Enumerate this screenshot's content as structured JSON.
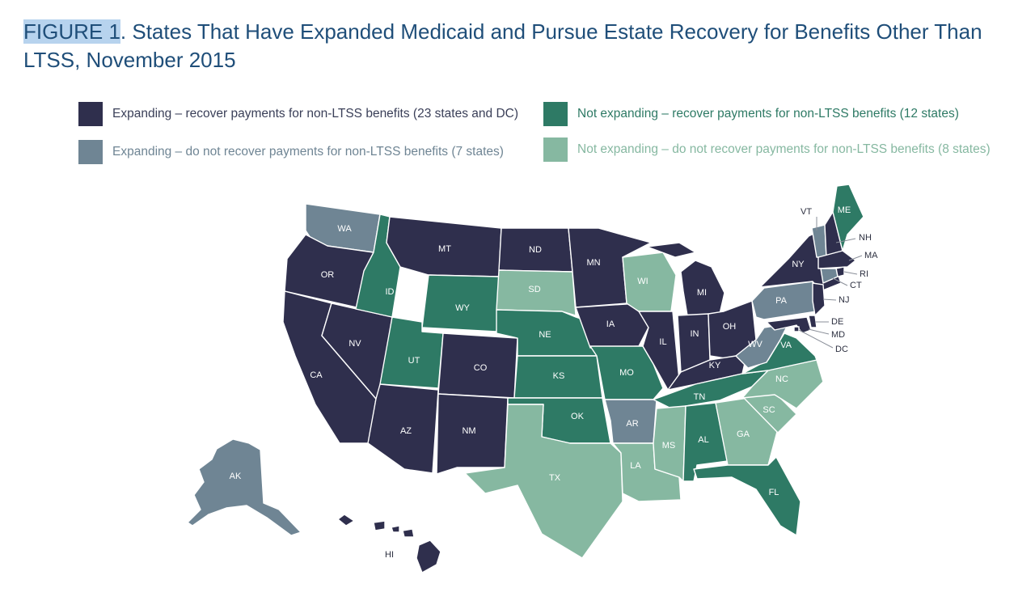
{
  "title": {
    "figure_label": "FIGURE 1",
    "text": ". States That Have Expanded Medicaid and Pursue Estate Recovery for Benefits Other Than LTSS, November 2015"
  },
  "colors": {
    "expanding_recover": "#2f2f4d",
    "expanding_no_recover": "#6f8594",
    "not_expanding_recover": "#2e7a65",
    "not_expanding_no_recover": "#86b8a1"
  },
  "legend": [
    {
      "key": "expanding_recover",
      "label": "Expanding – recover payments for non-LTSS benefits (23 states and DC)"
    },
    {
      "key": "not_expanding_recover",
      "label": "Not expanding – recover payments for non-LTSS benefits (12 states)"
    },
    {
      "key": "expanding_no_recover",
      "label": "Expanding – do not recover payments for non-LTSS benefits (7 states)"
    },
    {
      "key": "not_expanding_no_recover",
      "label": "Not expanding – do not recover payments for non-LTSS benefits (8 states)"
    }
  ],
  "states": {
    "WA": "expanding_no_recover",
    "OR": "expanding_recover",
    "CA": "expanding_recover",
    "NV": "expanding_recover",
    "ID": "not_expanding_recover",
    "MT": "expanding_recover",
    "WY": "not_expanding_recover",
    "UT": "not_expanding_recover",
    "AZ": "expanding_recover",
    "CO": "expanding_recover",
    "NM": "expanding_recover",
    "ND": "expanding_recover",
    "SD": "not_expanding_no_recover",
    "NE": "not_expanding_recover",
    "KS": "not_expanding_recover",
    "OK": "not_expanding_recover",
    "TX": "not_expanding_no_recover",
    "MN": "expanding_recover",
    "IA": "expanding_recover",
    "MO": "not_expanding_recover",
    "AR": "expanding_no_recover",
    "LA": "not_expanding_no_recover",
    "WI": "not_expanding_no_recover",
    "IL": "expanding_recover",
    "MI": "expanding_recover",
    "IN": "expanding_recover",
    "OH": "expanding_recover",
    "KY": "expanding_recover",
    "TN": "not_expanding_recover",
    "MS": "not_expanding_no_recover",
    "AL": "not_expanding_recover",
    "GA": "not_expanding_no_recover",
    "FL": "not_expanding_recover",
    "SC": "not_expanding_no_recover",
    "NC": "not_expanding_no_recover",
    "VA": "not_expanding_recover",
    "WV": "expanding_no_recover",
    "PA": "expanding_no_recover",
    "NY": "expanding_recover",
    "VT": "expanding_no_recover",
    "NH": "expanding_recover",
    "ME": "not_expanding_recover",
    "MA": "expanding_recover",
    "RI": "expanding_recover",
    "CT": "expanding_no_recover",
    "NJ": "expanding_recover",
    "DE": "expanding_recover",
    "MD": "expanding_recover",
    "DC": "expanding_recover",
    "AK": "expanding_no_recover",
    "HI": "expanding_recover"
  }
}
